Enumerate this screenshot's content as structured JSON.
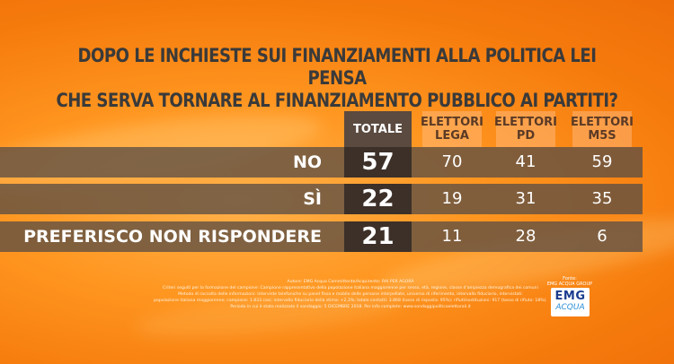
{
  "title_lines": [
    "DOPO LE INCHIESTE SUI FINANZIAMENTI ALLA POLITICA LEI PENSA",
    "CHE SERVA TORNARE AL FINANZIAMENTO PUBBLICO AI PARTITI?"
  ],
  "columns": [
    {
      "line1": "TOTALE",
      "line2": ""
    },
    {
      "line1": "ELETTORI",
      "line2": "LEGA"
    },
    {
      "line1": "ELETTORI",
      "line2": "PD"
    },
    {
      "line1": "ELETTORI",
      "line2": "M5S"
    }
  ],
  "chart_data": {
    "type": "table",
    "columns": [
      "TOTALE",
      "ELETTORI LEGA",
      "ELETTORI PD",
      "ELETTORI M5S"
    ],
    "rows": [
      {
        "label": "NO",
        "values": [
          57,
          70,
          41,
          59
        ]
      },
      {
        "label": "SÌ",
        "values": [
          22,
          19,
          31,
          35
        ]
      },
      {
        "label": "PREFERISCO NON RISPONDERE",
        "values": [
          21,
          11,
          28,
          6
        ]
      }
    ]
  },
  "footer_lines": [
    "Autore: EMG Acqua Committente/Acquirente: RAI PER AGORÀ",
    "Criteri seguiti per la formazione del campione: Campione rappresentativo della popolazione italiana maggiorenne per sesso, età, regione, classe d'ampiezza demografica dei comuni",
    "Metodo di raccolta delle informazioni: Interviste telefoniche su panel fissa e mobile delle persone interpellate, universo di riferimento, intervallo fiduciario, intervistati:",
    "popolazione italiana maggiorenne; campione: 1.833 casi; intervallo fiduciario della stima: +2,3%; totale contatti: 3.868 (tasso di risposta: 95%); rifiuti/sostituzioni: 917 (tasso di rifiuto: 18%).",
    "Periodo in cui è stato realizzato il sondaggio: 5 DICEMBRE 2018. Per info complete: www.sondaggipoliticoelettorali.it"
  ],
  "source": {
    "label": "Fonte:",
    "name": "EMG ACQUA GROUP",
    "logo_main": "EMG",
    "logo_sub": "ACQUA"
  },
  "colors": {
    "background": "#ff9620",
    "bar": "#5c4e44",
    "total_column": "#3c3029",
    "title_text": "#3a3a3a"
  }
}
